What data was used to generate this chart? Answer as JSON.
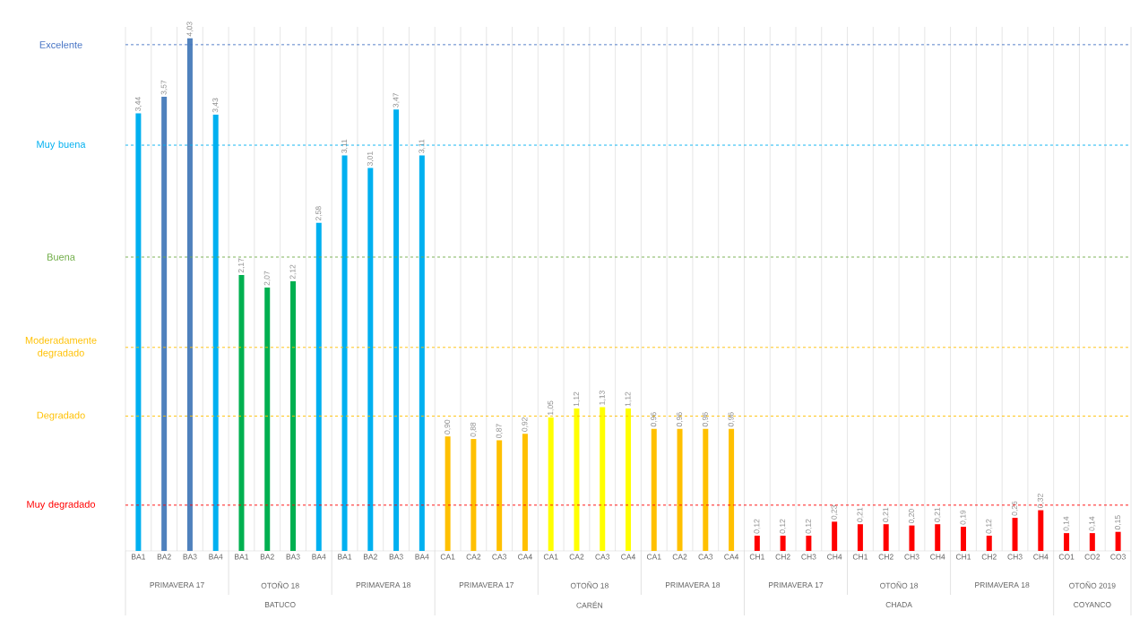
{
  "chart_data": {
    "type": "bar",
    "categories": [
      "BA1",
      "BA2",
      "BA3",
      "BA4",
      "BA1",
      "BA2",
      "BA3",
      "BA4",
      "BA1",
      "BA2",
      "BA3",
      "BA4",
      "CA1",
      "CA2",
      "CA3",
      "CA4",
      "CA1",
      "CA2",
      "CA3",
      "CA4",
      "CA1",
      "CA2",
      "CA3",
      "CA4",
      "CH1",
      "CH2",
      "CH3",
      "CH4",
      "CH1",
      "CH2",
      "CH3",
      "CH4",
      "CH1",
      "CH2",
      "CH3",
      "CH4",
      "CO1",
      "CO2",
      "CO3"
    ],
    "values": [
      3.44,
      3.57,
      4.03,
      3.43,
      2.17,
      2.07,
      2.12,
      2.58,
      3.11,
      3.01,
      3.47,
      3.11,
      0.9,
      0.88,
      0.87,
      0.92,
      1.05,
      1.12,
      1.13,
      1.12,
      0.96,
      0.96,
      0.96,
      0.96,
      0.12,
      0.12,
      0.12,
      0.23,
      0.21,
      0.21,
      0.2,
      0.21,
      0.19,
      0.12,
      0.26,
      0.32,
      0.14,
      0.14,
      0.15
    ],
    "value_labels": [
      "3,44",
      "3,57",
      "4,03",
      "3,43",
      "2,17",
      "2,07",
      "2,12",
      "2,58",
      "3,11",
      "3,01",
      "3,47",
      "3,11",
      "0,90",
      "0,88",
      "0,87",
      "0,92",
      "1,05",
      "1,12",
      "1,13",
      "1,12",
      "0,96",
      "0,96",
      "0,96",
      "0,96",
      "0,12",
      "0,12",
      "0,12",
      "0,23",
      "0,21",
      "0,21",
      "0,20",
      "0,21",
      "0,19",
      "0,12",
      "0,26",
      "0,32",
      "0,14",
      "0,14",
      "0,15"
    ],
    "colors": [
      "#00b0f0",
      "#4f81bd",
      "#4f81bd",
      "#00b0f0",
      "#00b050",
      "#00b050",
      "#00b050",
      "#00b0f0",
      "#00b0f0",
      "#00b0f0",
      "#00b0f0",
      "#00b0f0",
      "#ffc000",
      "#ffc000",
      "#ffc000",
      "#ffc000",
      "#ffff00",
      "#ffff00",
      "#ffff00",
      "#ffff00",
      "#ffc000",
      "#ffc000",
      "#ffc000",
      "#ffc000",
      "#ff0000",
      "#ff0000",
      "#ff0000",
      "#ff0000",
      "#ff0000",
      "#ff0000",
      "#ff0000",
      "#ff0000",
      "#ff0000",
      "#ff0000",
      "#ff0000",
      "#ff0000",
      "#ff0000",
      "#ff0000",
      "#ff0000"
    ],
    "annotations": [
      "PRIMAVERA 17",
      "OTOÑO 18",
      "PRIMAVERA 18",
      "PRIMAVERA 17",
      "OTOÑO 18",
      "PRIMAVERA 18",
      "PRIMAVERA 17",
      "OTOÑO 18",
      "PRIMAVERA 18",
      "OTOÑO 2019",
      "BATUCO",
      "CARÉN",
      "CHADA",
      "COYANCO"
    ],
    "ref_lines": [
      {
        "axis": "y",
        "value": 3.98,
        "label": "Excelente",
        "color": "#4472c4",
        "line_style": "dashed"
      },
      {
        "axis": "y",
        "value": 3.19,
        "label": "Muy buena",
        "color": "#00b0f0",
        "line_style": "dashed"
      },
      {
        "axis": "y",
        "value": 2.31,
        "label": "Buena",
        "color": "#70ad47",
        "line_style": "dashed"
      },
      {
        "axis": "y",
        "value": 1.6,
        "label": "Moderadamente degradado",
        "color": "#ffc000",
        "line_style": "dashed"
      },
      {
        "axis": "y",
        "value": 1.06,
        "label": "Degradado",
        "color": "#ffc000",
        "line_style": "dashed"
      },
      {
        "axis": "y",
        "value": 0.36,
        "label": "Muy degradado",
        "color": "#ff0000",
        "line_style": "dashed"
      }
    ],
    "ylim": [
      0,
      4.12
    ],
    "grid": "x",
    "tick_labels": "x"
  }
}
